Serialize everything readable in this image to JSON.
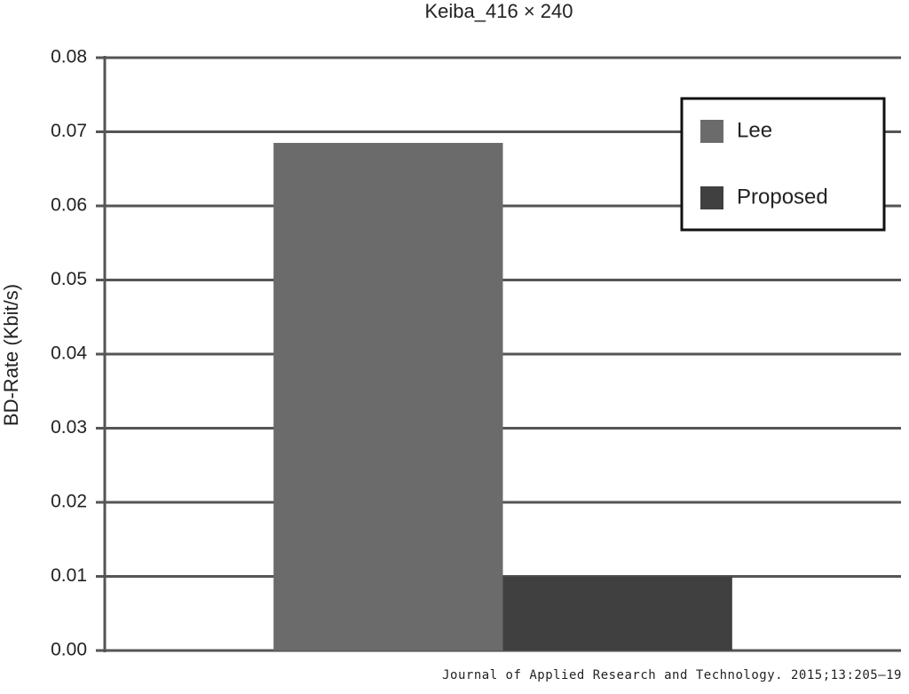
{
  "chart_data": {
    "type": "bar",
    "title": "Keiba_416 × 240",
    "y_label": "BD-Rate (Kbit/s)",
    "categories": [
      null
    ],
    "series": [
      {
        "name": "Lee",
        "color": "#6b6b6b",
        "values": [
          0.0685
        ]
      },
      {
        "name": "Proposed",
        "color": "#404040",
        "values": [
          0.01
        ]
      }
    ],
    "ylim": [
      0,
      0.08
    ],
    "yticks": [
      {
        "value": 0,
        "label": "0.00"
      },
      {
        "value": 0.01,
        "label": "0.01"
      },
      {
        "value": 0.02,
        "label": "0.02"
      },
      {
        "value": 0.03,
        "label": "0.03"
      },
      {
        "value": 0.04,
        "label": "0.04"
      },
      {
        "value": 0.05,
        "label": "0.05"
      },
      {
        "value": 0.06,
        "label": "0.06"
      },
      {
        "value": 0.07,
        "label": "0.07"
      },
      {
        "value": 0.08,
        "label": "0.08"
      }
    ],
    "grid": true,
    "legend": "upper-right",
    "footer": "Journal of Applied Research and Technology. 2015;13:205–19"
  }
}
